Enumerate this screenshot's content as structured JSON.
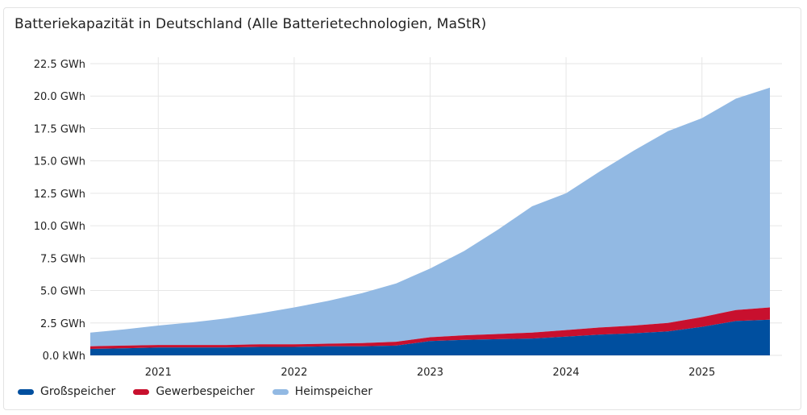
{
  "chart_data": {
    "type": "area",
    "title": "Batteriekapazität in Deutschland (Alle Batterietechnologien, MaStR)",
    "x_ticks": [
      "2021",
      "2022",
      "2023",
      "2024",
      "2025"
    ],
    "y_ticks": [
      "0.0 kWh",
      "2.5 GWh",
      "5.0 GWh",
      "7.5 GWh",
      "10.0 GWh",
      "12.5 GWh",
      "15.0 GWh",
      "17.5 GWh",
      "20.0 GWh",
      "22.5 GWh"
    ],
    "ylim": [
      0,
      22.5
    ],
    "xlim": [
      "2020-07",
      "2025-07"
    ],
    "stacked": true,
    "grid": true,
    "legend_position": "bottom-left",
    "x": [
      "2020-07",
      "2020-10",
      "2021-01",
      "2021-04",
      "2021-07",
      "2021-10",
      "2022-01",
      "2022-04",
      "2022-07",
      "2022-10",
      "2023-01",
      "2023-04",
      "2023-07",
      "2023-10",
      "2024-01",
      "2024-04",
      "2024-07",
      "2024-10",
      "2025-01",
      "2025-04",
      "2025-07"
    ],
    "series": [
      {
        "name": "Großspeicher",
        "color": "#004f9f",
        "values": [
          0.5,
          0.55,
          0.6,
          0.6,
          0.6,
          0.65,
          0.65,
          0.7,
          0.7,
          0.75,
          1.1,
          1.2,
          1.25,
          1.3,
          1.45,
          1.6,
          1.7,
          1.85,
          2.2,
          2.65,
          2.75
        ]
      },
      {
        "name": "Gewerbespeicher",
        "color": "#c8102e",
        "values": [
          0.2,
          0.2,
          0.2,
          0.2,
          0.2,
          0.2,
          0.2,
          0.2,
          0.25,
          0.3,
          0.3,
          0.35,
          0.4,
          0.45,
          0.5,
          0.55,
          0.6,
          0.65,
          0.75,
          0.85,
          0.95
        ]
      },
      {
        "name": "Heimspeicher",
        "color": "#92b9e3",
        "values": [
          1.05,
          1.25,
          1.5,
          1.75,
          2.05,
          2.4,
          2.85,
          3.3,
          3.85,
          4.5,
          5.3,
          6.5,
          8.05,
          9.75,
          10.55,
          12.05,
          13.5,
          14.8,
          15.35,
          16.3,
          16.95
        ]
      }
    ]
  }
}
